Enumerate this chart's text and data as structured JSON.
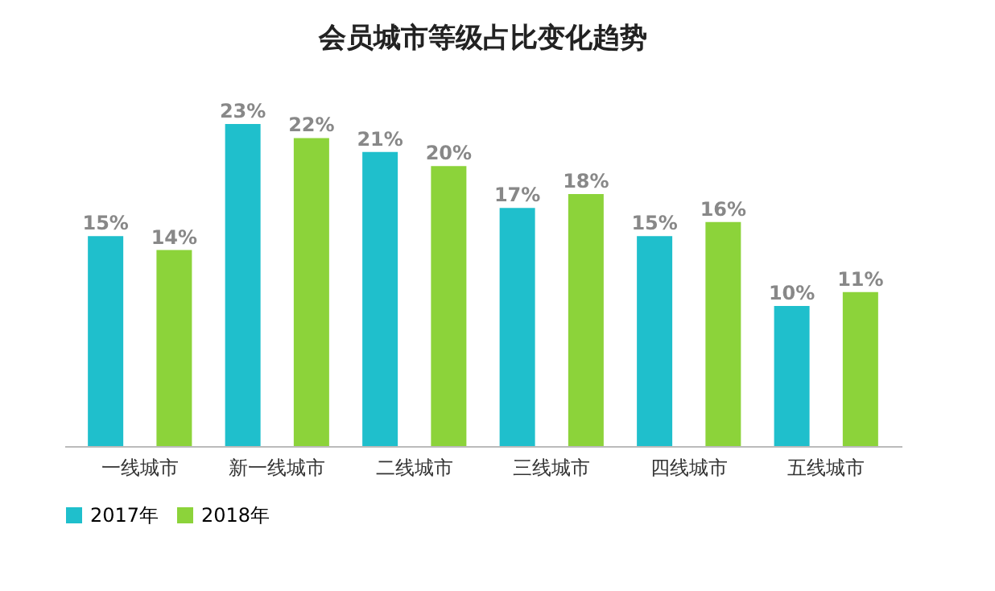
{
  "chart_data": {
    "type": "bar",
    "title": "会员城市等级占比变化趋势",
    "categories": [
      "一线城市",
      "新一线城市",
      "二线城市",
      "三线城市",
      "四线城市",
      "五线城市"
    ],
    "series": [
      {
        "name": "2017年",
        "color": "#1fbfcc",
        "values": [
          15,
          23,
          21,
          17,
          15,
          10
        ],
        "value_labels": [
          "15%",
          "23%",
          "21%",
          "17%",
          "15%",
          "10%"
        ]
      },
      {
        "name": "2018年",
        "color": "#8cd33a",
        "values": [
          14,
          22,
          20,
          18,
          16,
          11
        ],
        "value_labels": [
          "14%",
          "22%",
          "20%",
          "18%",
          "16%",
          "11%"
        ]
      }
    ],
    "legend": "bottom",
    "tick_labels": "x",
    "grid": false
  }
}
